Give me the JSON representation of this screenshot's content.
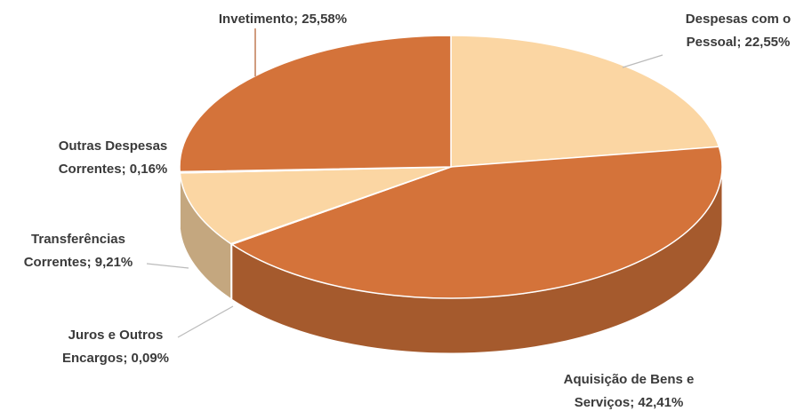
{
  "chart_data": {
    "type": "pie",
    "values": [
      22.55,
      42.41,
      0.09,
      9.21,
      0.16,
      25.58
    ],
    "value_labels": [
      [
        "Despesas com o",
        "Pessoal; 22,55%"
      ],
      [
        "Aquisição de Bens e",
        "Serviços; 42,41%"
      ],
      [
        "Juros e Outros",
        "Encargos; 0,09%"
      ],
      [
        "Transferências",
        "Correntes; 9,21%"
      ],
      [
        "Outras Despesas",
        "Correntes; 0,16%"
      ],
      [
        "Invetimento; 25,58%"
      ]
    ],
    "colors": [
      "#fbd6a3",
      "#d4733a",
      "#f3c48c",
      "#fbd6a3",
      "#f3c48c",
      "#d4733a"
    ]
  }
}
